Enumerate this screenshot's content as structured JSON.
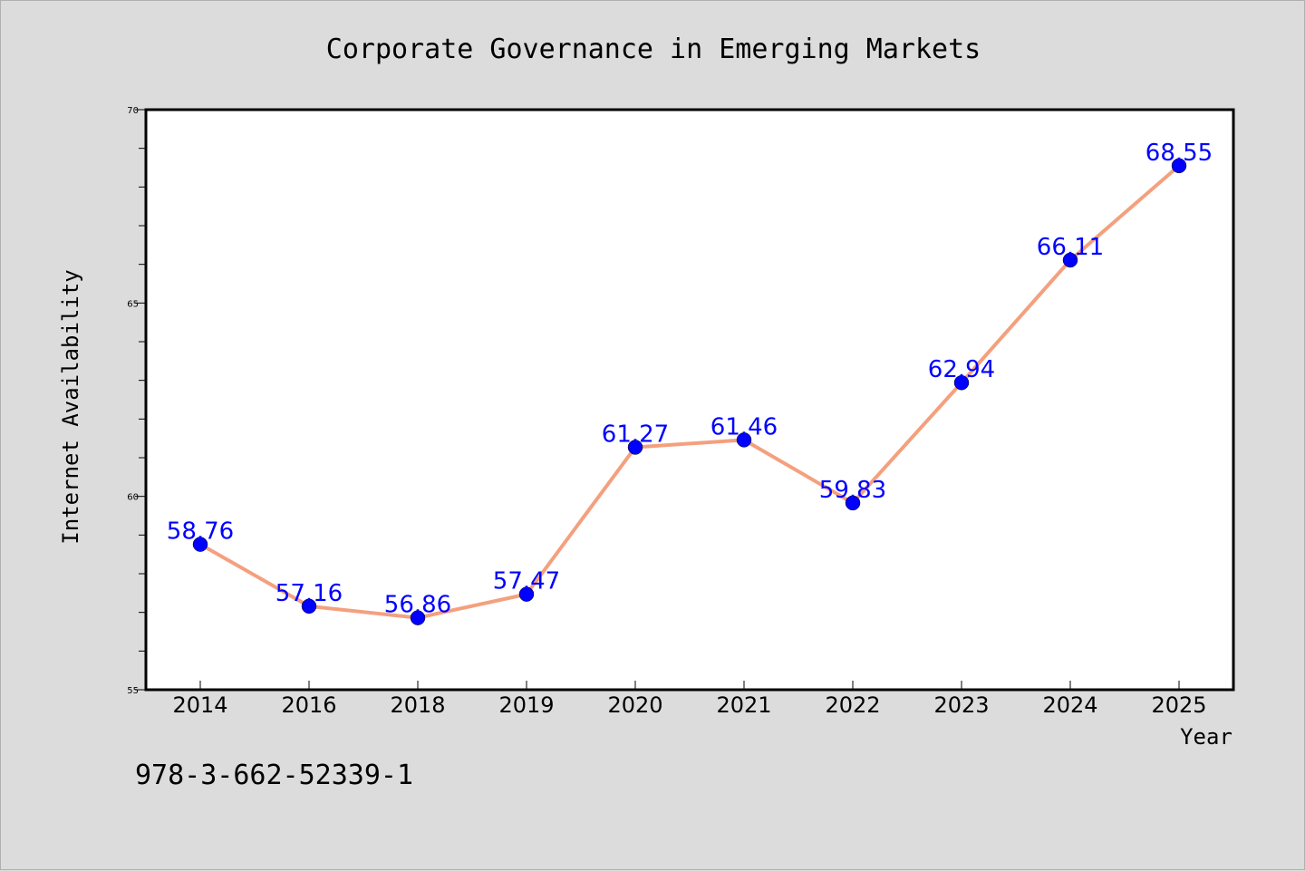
{
  "chart_data": {
    "type": "line",
    "title": "Corporate Governance in Emerging Markets",
    "xlabel": "Year",
    "ylabel": "Internet Availability",
    "categories": [
      "2014",
      "2016",
      "2018",
      "2019",
      "2020",
      "2021",
      "2022",
      "2023",
      "2024",
      "2025"
    ],
    "values": [
      58.76,
      57.16,
      56.86,
      57.47,
      61.27,
      61.46,
      59.83,
      62.94,
      66.11,
      68.55
    ],
    "data_labels": [
      "58.76",
      "57.16",
      "56.86",
      "57.47",
      "61.27",
      "61.46",
      "59.83",
      "62.94",
      "66.11",
      "68.55"
    ],
    "ylim": [
      55,
      70
    ],
    "yticks": [
      55,
      60,
      65,
      70
    ],
    "ytick_labels": [
      "55",
      "60",
      "65",
      "70"
    ],
    "grid": false,
    "line_color": "#f4a07e",
    "marker_color": "#0000ff",
    "label_color": "#0000ff",
    "background_color": "#dcdcdc",
    "plot_background": "#ffffff"
  },
  "footer": {
    "code": "978-3-662-52339-1"
  }
}
